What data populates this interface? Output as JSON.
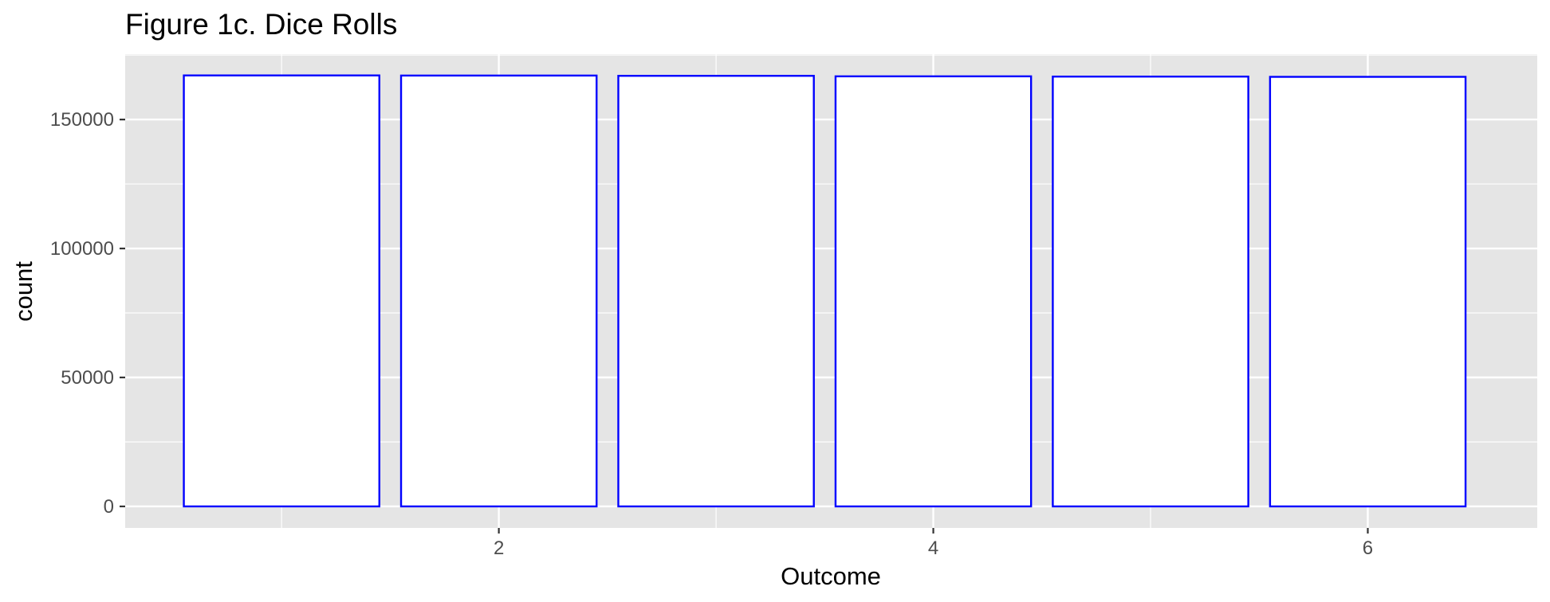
{
  "chart_data": {
    "type": "bar",
    "title": "Figure 1c. Dice Rolls",
    "xlabel": "Outcome",
    "ylabel": "count",
    "categories": [
      1,
      2,
      3,
      4,
      5,
      6
    ],
    "values": [
      167100,
      167050,
      166950,
      166750,
      166650,
      166550
    ],
    "x_ticks": [
      2,
      4,
      6
    ],
    "y_ticks": [
      0,
      50000,
      100000,
      150000
    ],
    "xlim": [
      0.28,
      6.78
    ],
    "ylim": [
      -8350,
      175350
    ],
    "grid": true,
    "legend": "none",
    "colors": {
      "bar_fill": "#ffffff",
      "bar_outline": "#0000ff",
      "panel_background": "#e5e5e5",
      "grid_line": "#ffffff",
      "tick_label": "#4d4d4d",
      "tick_mark": "#333333",
      "text": "#000000"
    }
  }
}
